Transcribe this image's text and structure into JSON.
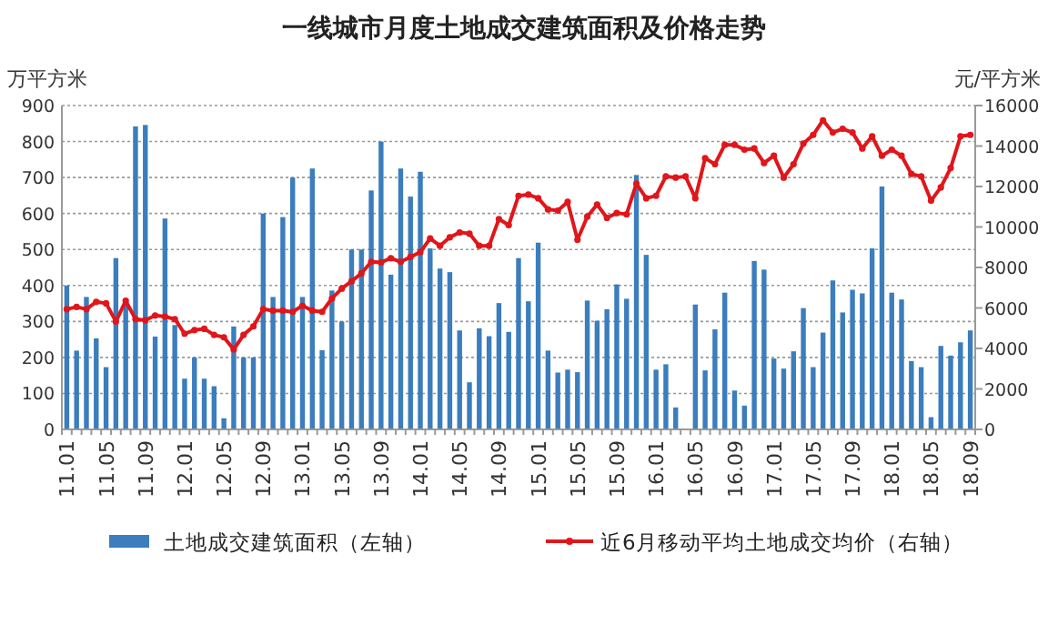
{
  "chart_data": {
    "type": "bar",
    "title": "一线城市月度土地成交建筑面积及价格走势",
    "ylabel": "万平方米",
    "y2label": "元/平方米",
    "categories": [
      "11.01",
      null,
      null,
      null,
      "11.05",
      null,
      null,
      null,
      "11.09",
      null,
      null,
      null,
      "12.01",
      null,
      null,
      null,
      "12.05",
      null,
      null,
      null,
      "12.09",
      null,
      null,
      null,
      "13.01",
      null,
      null,
      null,
      "13.05",
      null,
      null,
      null,
      "13.09",
      null,
      null,
      null,
      "14.01",
      null,
      null,
      null,
      "14.05",
      null,
      null,
      null,
      "14.09",
      null,
      null,
      null,
      "15.01",
      null,
      null,
      null,
      "15.05",
      null,
      null,
      null,
      "15.09",
      null,
      null,
      null,
      "16.01",
      null,
      null,
      null,
      "16.05",
      null,
      null,
      null,
      "16.09",
      null,
      null,
      null,
      "17.01",
      null,
      null,
      null,
      "17.05",
      null,
      null,
      null,
      "17.09",
      null,
      null,
      null,
      "18.01",
      null,
      null,
      null,
      "18.05",
      null,
      null,
      null,
      "18.09"
    ],
    "series": [
      {
        "name": "土地成交建筑面积（左轴）",
        "color": "#3b7dbd",
        "values": [
          400,
          219,
          368,
          253,
          173,
          476,
          354,
          842,
          846,
          258,
          586,
          290,
          141,
          200,
          141,
          120,
          31,
          286,
          200,
          200,
          600,
          368,
          590,
          700,
          368,
          725,
          220,
          386,
          300,
          500,
          500,
          664,
          800,
          430,
          725,
          647,
          716,
          503,
          447,
          437,
          275,
          131,
          281,
          259,
          351,
          271,
          476,
          356,
          519,
          219,
          158,
          166,
          159,
          358,
          302,
          334,
          403,
          363,
          707,
          485,
          166,
          181,
          61,
          0,
          347,
          164,
          278,
          380,
          108,
          66,
          468,
          444,
          197,
          169,
          217,
          337,
          173,
          269,
          414,
          325,
          388,
          378,
          503,
          675,
          380,
          361,
          190,
          173,
          34,
          232,
          205,
          242,
          275
        ]
      },
      {
        "name": "近6月移动平均土地成交均价（右轴）",
        "type": "line",
        "axis": "y2",
        "color": "#e0161b",
        "marker": "circle",
        "values": [
          5940,
          6050,
          5940,
          6300,
          6230,
          5330,
          6350,
          5450,
          5390,
          5630,
          5570,
          5450,
          4730,
          4910,
          4970,
          4670,
          4550,
          3950,
          4670,
          5090,
          5940,
          5870,
          5870,
          5810,
          6110,
          5870,
          5810,
          6470,
          6960,
          7320,
          7710,
          8280,
          8250,
          8460,
          8280,
          8520,
          8760,
          9430,
          9070,
          9490,
          9730,
          9670,
          9070,
          9070,
          10390,
          10090,
          11540,
          11600,
          11420,
          10870,
          10810,
          11240,
          9370,
          10510,
          11110,
          10450,
          10690,
          10630,
          12140,
          11420,
          11540,
          12500,
          12440,
          12500,
          11420,
          13400,
          13100,
          14060,
          14060,
          13820,
          13880,
          13160,
          13520,
          12440,
          13100,
          14120,
          14550,
          15270,
          14670,
          14850,
          14670,
          13880,
          14480,
          13520,
          13820,
          13520,
          12620,
          12500,
          11300,
          11960,
          12920,
          14480,
          14550
        ]
      }
    ],
    "ylim": [
      0,
      900
    ],
    "yticks": [
      0,
      100,
      200,
      300,
      400,
      500,
      600,
      700,
      800,
      900
    ],
    "y2lim": [
      0,
      16000
    ],
    "y2ticks": [
      0,
      2000,
      4000,
      6000,
      8000,
      10000,
      12000,
      14000,
      16000
    ],
    "grid": "y",
    "legend": "bottom"
  }
}
